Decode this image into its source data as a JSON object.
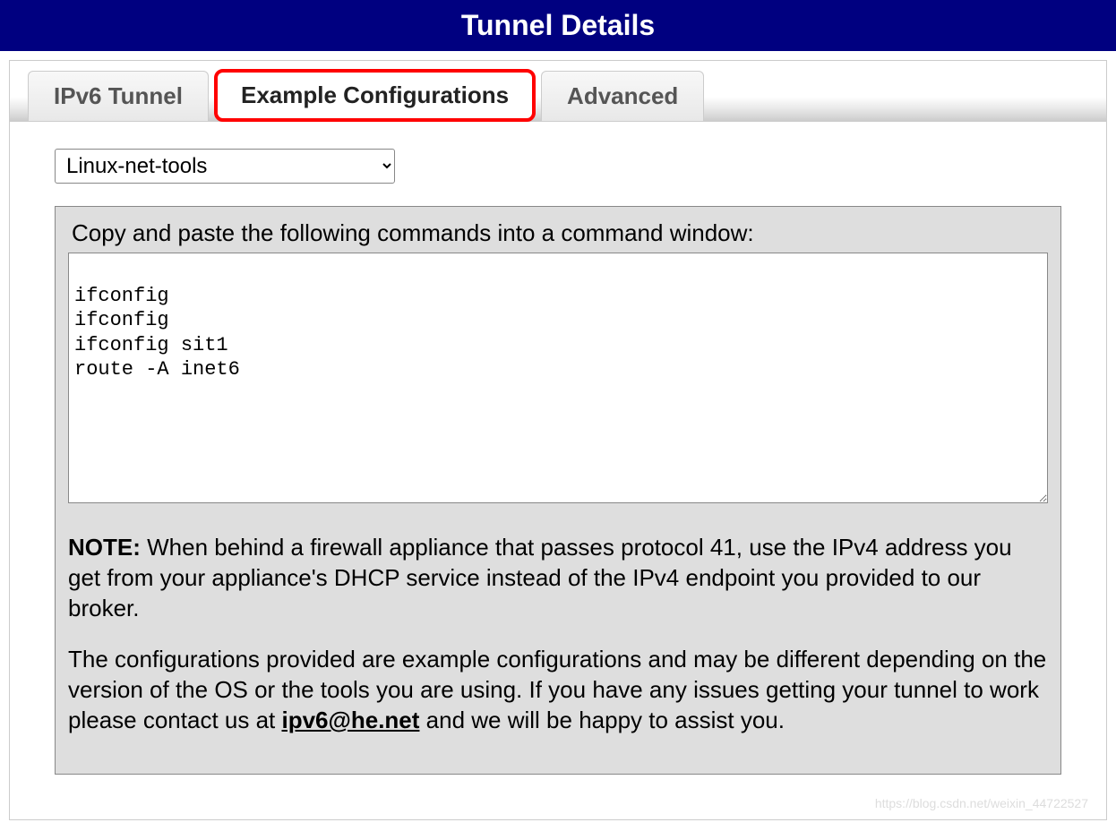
{
  "header": {
    "title": "Tunnel Details"
  },
  "tabs": [
    {
      "label": "IPv6 Tunnel",
      "state": "inactive"
    },
    {
      "label": "Example Configurations",
      "state": "highlighted"
    },
    {
      "label": "Advanced",
      "state": "inactive"
    }
  ],
  "config": {
    "select_value": "Linux-net-tools",
    "instruction": "Copy and paste the following commands into a command window:",
    "code_text": "\nifconfig \nifconfig \nifconfig sit1 \nroute -A inet6 ",
    "note_label": "NOTE:",
    "note_body1": " When behind a firewall appliance that passes protocol 41, use the IPv4 address you get from your appliance's DHCP service instead of the IPv4 endpoint you provided to our broker.",
    "note_body2_pre": "The configurations provided are example configurations and may be different depending on the version of the OS or the tools you are using. If you have any issues getting your tunnel to work please contact us at ",
    "note_email": "ipv6@he.net",
    "note_body2_post": " and we will be happy to assist you."
  },
  "watermark": "https://blog.csdn.net/weixin_44722527",
  "colors": {
    "header_bg": "#000080",
    "header_text": "#ffffff",
    "highlight_border": "#ff0000",
    "panel_bg": "#dedede",
    "panel_border": "#888888",
    "tab_text": "#555555",
    "tab_border": "#cccccc"
  },
  "typography": {
    "header_fontsize": 32,
    "tab_fontsize": 26,
    "body_fontsize": 26,
    "code_fontsize": 22,
    "code_fontfamily": "Courier New"
  }
}
